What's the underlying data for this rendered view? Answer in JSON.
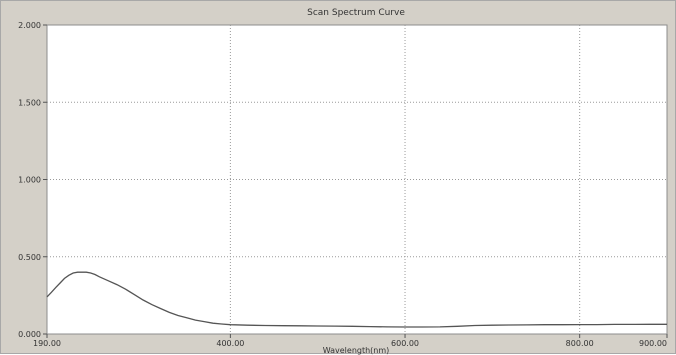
{
  "chart_data": {
    "type": "line",
    "title": "Scan Spectrum Curve",
    "xlabel": "Wavelength(nm)",
    "ylabel": "",
    "xlim": [
      190.0,
      900.0
    ],
    "ylim": [
      0.0,
      2.0
    ],
    "x_ticks": [
      190.0,
      400.0,
      600.0,
      800.0,
      900.0
    ],
    "x_tick_labels": [
      "190.00",
      "400.00",
      "600.00",
      "800.00",
      "900.00"
    ],
    "y_ticks": [
      0.0,
      0.5,
      1.0,
      1.5,
      2.0
    ],
    "y_tick_labels": [
      "0.000",
      "0.500",
      "1.000",
      "1.500",
      "2.000"
    ],
    "grid": true,
    "series": [
      {
        "color": "#555555",
        "x": [
          190,
          195,
          200,
          205,
          210,
          215,
          220,
          225,
          230,
          235,
          240,
          245,
          250,
          260,
          270,
          280,
          290,
          300,
          310,
          320,
          330,
          340,
          350,
          360,
          370,
          380,
          390,
          400,
          420,
          440,
          460,
          480,
          500,
          520,
          540,
          560,
          580,
          600,
          620,
          640,
          660,
          680,
          700,
          720,
          740,
          760,
          780,
          800,
          820,
          840,
          860,
          880,
          900
        ],
        "values": [
          0.24,
          0.27,
          0.3,
          0.33,
          0.36,
          0.38,
          0.395,
          0.4,
          0.4,
          0.4,
          0.395,
          0.385,
          0.37,
          0.345,
          0.32,
          0.29,
          0.255,
          0.22,
          0.19,
          0.165,
          0.14,
          0.12,
          0.105,
          0.09,
          0.08,
          0.07,
          0.065,
          0.06,
          0.057,
          0.055,
          0.054,
          0.053,
          0.052,
          0.051,
          0.05,
          0.048,
          0.046,
          0.045,
          0.045,
          0.046,
          0.05,
          0.055,
          0.057,
          0.058,
          0.059,
          0.06,
          0.06,
          0.061,
          0.061,
          0.062,
          0.062,
          0.063,
          0.063
        ]
      }
    ]
  }
}
